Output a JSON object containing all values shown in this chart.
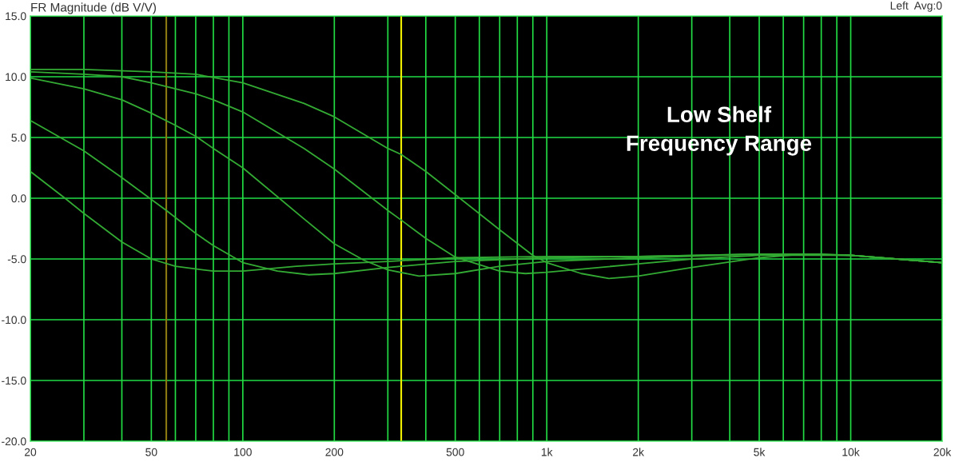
{
  "chart_data": {
    "type": "line",
    "title": "FR Magnitude (dB V/V)",
    "annotations": [
      "Low Shelf\nFrequency Range",
      "Left  Avg:0"
    ],
    "log": "x",
    "grid": true,
    "line_style": "solid",
    "xlim": [
      20,
      20000
    ],
    "ylim": [
      -20,
      15
    ],
    "xticks": [
      20,
      {
        "value": 30,
        "label": null
      },
      {
        "value": 40,
        "label": null
      },
      50,
      {
        "value": 60,
        "label": null
      },
      {
        "value": 70,
        "label": null
      },
      {
        "value": 80,
        "label": null
      },
      {
        "value": 90,
        "label": null
      },
      100,
      200,
      {
        "value": 300,
        "label": null
      },
      {
        "value": 400,
        "label": null
      },
      500,
      {
        "value": 600,
        "label": null
      },
      {
        "value": 700,
        "label": null
      },
      {
        "value": 800,
        "label": null
      },
      {
        "value": 900,
        "label": null
      },
      {
        "value": 1000,
        "label": "1k"
      },
      {
        "value": 2000,
        "label": "2k"
      },
      {
        "value": 3000,
        "label": null
      },
      {
        "value": 4000,
        "label": null
      },
      {
        "value": 5000,
        "label": "5k"
      },
      {
        "value": 6000,
        "label": null
      },
      {
        "value": 7000,
        "label": null
      },
      {
        "value": 8000,
        "label": null
      },
      {
        "value": 9000,
        "label": null
      },
      {
        "value": 10000,
        "label": "10k"
      },
      {
        "value": 20000,
        "label": "20k"
      }
    ],
    "yticks": [
      {
        "value": -20,
        "label": "-20.0"
      },
      {
        "value": -15,
        "label": "-15.0"
      },
      {
        "value": -10,
        "label": "-10.0"
      },
      {
        "value": -5,
        "label": "-5.0"
      },
      {
        "value": 0,
        "label": "0.0"
      },
      {
        "value": 5,
        "label": "5.0"
      },
      {
        "value": 10,
        "label": "10.0"
      },
      {
        "value": 15,
        "label": "15.0"
      }
    ],
    "ref_lines": [
      {
        "axis": "x",
        "value": 56,
        "label": null,
        "color": "#8a7a10"
      },
      {
        "axis": "x",
        "value": 332,
        "label": null,
        "color": "#f0f000"
      }
    ],
    "series": [
      {
        "color": "#33aa33",
        "x": [
          20,
          26,
          30,
          40,
          50,
          60,
          80,
          100,
          150,
          200,
          300,
          500,
          1000,
          2000,
          5000,
          8000,
          10000,
          20000
        ],
        "values": [
          2.2,
          0.0,
          -1.25,
          -3.6,
          -5.0,
          -5.6,
          -6.0,
          -6.0,
          -5.6,
          -5.4,
          -5.2,
          -4.9,
          -4.8,
          -4.8,
          -4.6,
          -4.6,
          -4.7,
          -5.3
        ]
      },
      {
        "color": "#33aa33",
        "x": [
          20,
          30,
          40,
          50,
          56,
          70,
          80,
          100,
          130,
          165,
          200,
          300,
          500,
          1000,
          2000,
          5000,
          10000,
          20000
        ],
        "values": [
          6.4,
          3.9,
          1.7,
          -0.1,
          -1.0,
          -2.9,
          -3.9,
          -5.3,
          -6.0,
          -6.3,
          -6.2,
          -5.7,
          -5.2,
          -4.9,
          -4.8,
          -4.6,
          -4.7,
          -5.3
        ]
      },
      {
        "color": "#33aa33",
        "x": [
          20,
          30,
          40,
          50,
          60,
          70,
          80,
          100,
          159,
          200,
          250,
          300,
          380,
          500,
          700,
          1000,
          2000,
          5000,
          10000,
          20000
        ],
        "values": [
          9.9,
          9.0,
          8.1,
          7.0,
          6.0,
          5.1,
          4.1,
          2.5,
          -1.7,
          -3.75,
          -5.1,
          -5.9,
          -6.4,
          -6.2,
          -5.6,
          -5.2,
          -4.9,
          -4.6,
          -4.7,
          -5.3
        ]
      },
      {
        "color": "#33aa33",
        "x": [
          20,
          30,
          40,
          50,
          70,
          80,
          100,
          159,
          200,
          300,
          332,
          400,
          500,
          700,
          850,
          1000,
          2000,
          3000,
          5000,
          10000,
          20000
        ],
        "values": [
          10.4,
          10.2,
          10.0,
          9.5,
          8.6,
          8.1,
          7.1,
          4.1,
          2.4,
          -1.0,
          -1.8,
          -3.3,
          -4.85,
          -6.0,
          -6.2,
          -6.1,
          -5.4,
          -5.0,
          -4.7,
          -4.7,
          -5.3
        ]
      },
      {
        "color": "#33aa33",
        "x": [
          20,
          30,
          50,
          70,
          100,
          159,
          200,
          300,
          332,
          400,
          500,
          700,
          900,
          1000,
          1300,
          1600,
          2000,
          3000,
          5000,
          7000,
          10000,
          20000
        ],
        "values": [
          10.6,
          10.6,
          10.4,
          10.2,
          9.5,
          7.8,
          6.7,
          4.1,
          3.6,
          2.2,
          0.3,
          -2.6,
          -4.7,
          -5.3,
          -6.2,
          -6.6,
          -6.4,
          -5.7,
          -4.9,
          -4.6,
          -4.7,
          -5.3
        ]
      }
    ]
  }
}
